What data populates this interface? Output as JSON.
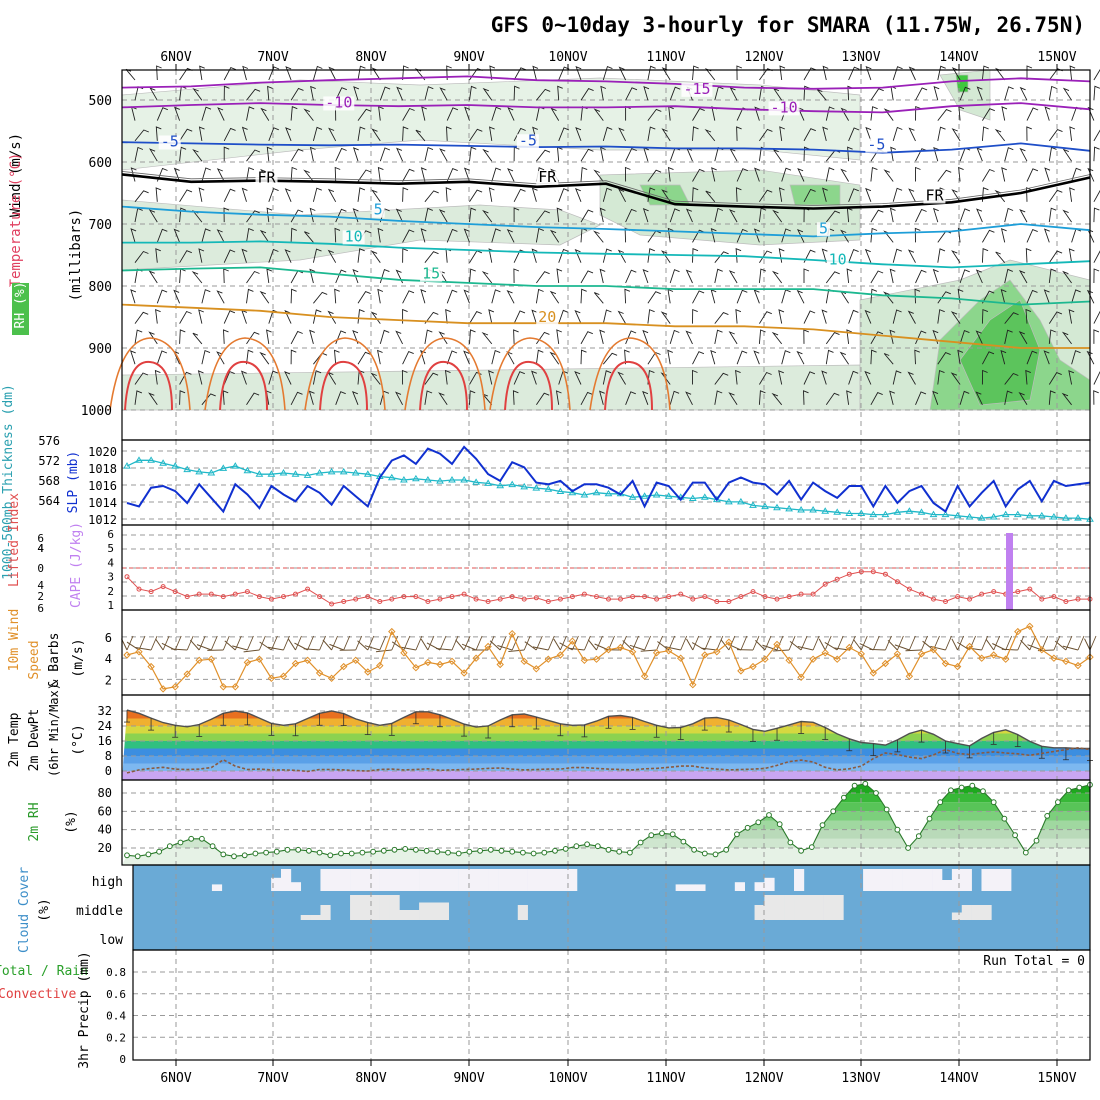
{
  "chart_data": {
    "type": "meteogram",
    "title": "GFS 0~10day 3-hourly for SMARA (11.75W, 26.75N)",
    "dates": [
      "6NOV",
      "7NOV",
      "8NOV",
      "9NOV",
      "10NOV",
      "11NOV",
      "12NOV",
      "13NOV",
      "14NOV",
      "15NOV"
    ],
    "colors": {
      "grid": "#9a9a9a",
      "blue_line": "#1030d0",
      "cyan_line": "#20b8c8",
      "cloud": "#6aaad6",
      "cloud_clear": "#f4f2f8",
      "precip_bar": "#c080f0"
    },
    "upper": {
      "ylabel_main": "(millibars)",
      "ylabel_wind": "Wind (m/s)",
      "ylabel_temp": "Temperature (°C)",
      "ylabel_rh": "RH (%)",
      "ticks": [
        "500",
        "600",
        "700",
        "800",
        "900",
        "1000"
      ],
      "tick_values": [
        500,
        600,
        700,
        800,
        900,
        1000
      ],
      "ylim": [
        450,
        1000
      ],
      "isotherms": [
        {
          "label": "-15",
          "p": [
            480,
            478,
            472,
            468,
            465,
            462,
            468,
            470,
            474,
            480,
            482,
            480,
            470,
            465,
            470
          ]
        },
        {
          "label": "-10",
          "p": [
            512,
            508,
            505,
            508,
            510,
            508,
            512,
            512,
            510,
            515,
            518,
            520,
            510,
            505,
            515
          ]
        },
        {
          "label": "-5",
          "p": [
            568,
            570,
            572,
            573,
            572,
            574,
            576,
            575,
            578,
            578,
            580,
            585,
            580,
            570,
            582
          ]
        },
        {
          "label": "FR",
          "p": [
            620,
            632,
            630,
            632,
            635,
            632,
            640,
            635,
            668,
            672,
            675,
            672,
            665,
            650,
            625
          ]
        },
        {
          "label": "5",
          "p": [
            672,
            680,
            685,
            688,
            695,
            700,
            705,
            708,
            712,
            716,
            720,
            715,
            712,
            700,
            710
          ]
        },
        {
          "label": "10",
          "p": [
            730,
            730,
            728,
            732,
            738,
            742,
            746,
            748,
            750,
            752,
            758,
            765,
            770,
            765,
            760
          ]
        },
        {
          "label": "15",
          "p": [
            775,
            772,
            770,
            780,
            790,
            795,
            800,
            800,
            805,
            805,
            805,
            815,
            820,
            830,
            825
          ]
        },
        {
          "label": "20",
          "p": [
            830,
            835,
            840,
            850,
            855,
            860,
            860,
            860,
            865,
            865,
            870,
            880,
            890,
            900,
            900
          ]
        }
      ],
      "iso_labels": [
        {
          "text": "-15",
          "color": "#9a20b8",
          "x": 0.58,
          "p": 490
        },
        {
          "text": "-10",
          "color": "#9a20b8",
          "x": 0.21,
          "p": 512
        },
        {
          "text": "-10",
          "color": "#9a20b8",
          "x": 0.67,
          "p": 520
        },
        {
          "text": "-5",
          "color": "#1e4ec8",
          "x": 0.04,
          "p": 575
        },
        {
          "text": "-5",
          "color": "#1e4ec8",
          "x": 0.41,
          "p": 573
        },
        {
          "text": "-5",
          "color": "#1e4ec8",
          "x": 0.77,
          "p": 580
        },
        {
          "text": "FR",
          "color": "#000000",
          "x": 0.14,
          "p": 633
        },
        {
          "text": "FR",
          "color": "#000000",
          "x": 0.43,
          "p": 632
        },
        {
          "text": "FR",
          "color": "#000000",
          "x": 0.83,
          "p": 662
        },
        {
          "text": "5",
          "color": "#1e9ed8",
          "x": 0.26,
          "p": 685
        },
        {
          "text": "5",
          "color": "#1e9ed8",
          "x": 0.72,
          "p": 715
        },
        {
          "text": "10",
          "color": "#14b8b8",
          "x": 0.23,
          "p": 728
        },
        {
          "text": "10",
          "color": "#14b8b8",
          "x": 0.73,
          "p": 765
        },
        {
          "text": "15",
          "color": "#1cb890",
          "x": 0.31,
          "p": 788
        },
        {
          "text": "20",
          "color": "#d89020",
          "x": 0.43,
          "p": 858
        }
      ]
    },
    "panel2": {
      "ylabel_left": "1000-500mb Thickness (dm)",
      "ylabel_right": "SLP (mb)",
      "left_ticks": [
        "576",
        "572",
        "568",
        "564"
      ],
      "right_ticks": [
        "1020",
        "1018",
        "1016",
        "1014",
        "1012"
      ],
      "slp": [
        1014.0,
        1013.6,
        1015.8,
        1016.0,
        1015.4,
        1014.0,
        1016.2,
        1014.6,
        1013.0,
        1016.2,
        1015.0,
        1013.4,
        1016.0,
        1015.0,
        1014.2,
        1016.0,
        1015.2,
        1013.8,
        1016.0,
        1014.8,
        1013.6,
        1017.0,
        1019.0,
        1019.6,
        1018.6,
        1020.4,
        1019.8,
        1018.6,
        1020.6,
        1019.2,
        1017.4,
        1016.6,
        1018.8,
        1018.2,
        1016.4,
        1016.2,
        1016.6,
        1015.4,
        1016.2,
        1016.2,
        1015.8,
        1015.0,
        1016.6,
        1013.6,
        1016.4,
        1016.0,
        1014.4,
        1016.4,
        1016.4,
        1014.4,
        1016.4,
        1017.0,
        1016.4,
        1016.2,
        1015.0,
        1016.6,
        1014.4,
        1016.4,
        1015.4,
        1014.6,
        1016.0,
        1016.0,
        1013.6,
        1016.0,
        1014.0,
        1015.4,
        1016.0,
        1014.0,
        1013.0,
        1016.0,
        1013.6,
        1015.2,
        1016.6,
        1013.6,
        1015.6,
        1016.6,
        1014.2,
        1016.6,
        1016.0,
        1016.2,
        1016.4
      ],
      "thickness": [
        572.0,
        573.0,
        573.0,
        572.5,
        572.0,
        571.4,
        571.0,
        570.8,
        571.6,
        572.0,
        571.2,
        570.6,
        570.6,
        570.8,
        570.6,
        570.4,
        570.8,
        571.0,
        571.0,
        570.8,
        570.6,
        570.2,
        570.0,
        569.6,
        569.8,
        569.6,
        569.4,
        569.6,
        569.6,
        569.2,
        569.0,
        568.6,
        568.8,
        568.4,
        568.2,
        568.0,
        567.6,
        567.4,
        567.0,
        567.4,
        567.2,
        567.2,
        566.6,
        566.8,
        567.0,
        566.8,
        566.6,
        566.4,
        566.6,
        566.2,
        565.8,
        565.8,
        565.2,
        565.0,
        564.8,
        564.6,
        564.4,
        564.4,
        564.2,
        564.0,
        563.8,
        563.8,
        563.6,
        563.6,
        564.0,
        564.2,
        564.0,
        563.6,
        563.6,
        563.4,
        563.2,
        563.0,
        563.2,
        563.6,
        563.6,
        563.4,
        563.4,
        563.2,
        563.0,
        563.0,
        562.8
      ]
    },
    "panel3": {
      "ylabel_li": "Lifted Index",
      "ylabel_cape": "CAPE (J/kg)",
      "ticks": [
        "6",
        "4",
        "2",
        "0",
        "2",
        "4",
        "6"
      ],
      "li_positive": [
        2.6,
        1.6,
        1.4,
        1.8,
        1.4,
        1.0,
        1.2,
        1.2,
        1.0,
        1.2,
        1.4,
        1.0,
        0.8,
        1.0,
        1.2,
        1.6,
        1.0,
        0.4,
        0.6,
        0.8,
        1.0,
        0.6,
        0.8,
        1.0,
        1.0,
        0.6,
        0.8,
        1.0,
        1.2,
        0.8,
        0.6,
        0.8,
        1.0,
        0.8,
        0.9,
        0.6,
        0.8,
        1.0,
        1.2,
        1.0,
        0.8,
        0.8,
        1.0,
        1.0,
        0.8,
        1.0,
        1.2,
        0.8,
        1.0,
        0.6,
        0.6,
        1.0,
        1.4,
        1.0,
        0.8,
        1.0,
        1.2,
        1.2,
        2.0,
        2.4,
        2.8,
        3.0,
        3.0,
        2.8,
        2.2,
        1.6,
        1.2,
        0.8,
        0.6,
        1.0,
        0.8,
        1.2,
        1.4,
        1.2,
        1.4,
        1.6,
        0.8,
        1.0,
        0.6,
        0.8,
        0.8
      ],
      "cape_bar": {
        "date_index": 8.5,
        "value": 6
      }
    },
    "panel4": {
      "ylabel_wind": "10m Wind",
      "ylabel_speed": "Speed",
      "ylabel_barbs": "& Barbs",
      "unit": "(m/s)",
      "ticks": [
        "6",
        "4",
        "2"
      ],
      "speed": [
        4.3,
        4.6,
        3.2,
        1.1,
        1.3,
        2.5,
        3.8,
        3.9,
        1.3,
        1.3,
        3.6,
        3.9,
        2.1,
        2.3,
        3.5,
        3.8,
        2.6,
        2.1,
        3.2,
        3.8,
        2.7,
        3.3,
        6.5,
        4.5,
        3.1,
        3.6,
        3.4,
        3.7,
        2.6,
        4.0,
        5.1,
        3.4,
        6.3,
        3.7,
        3.0,
        3.9,
        4.3,
        5.6,
        3.8,
        3.9,
        4.8,
        5.0,
        4.6,
        2.3,
        4.5,
        4.7,
        4.0,
        1.5,
        4.3,
        4.6,
        5.5,
        2.8,
        3.2,
        3.9,
        5.3,
        3.8,
        2.2,
        3.9,
        4.5,
        3.9,
        5.0,
        4.4,
        2.6,
        3.5,
        4.4,
        2.3,
        4.4,
        4.8,
        3.5,
        3.2,
        5.1,
        4.0,
        4.3,
        3.9,
        6.5,
        7.0,
        4.8,
        4.0,
        3.7,
        3.3,
        4.1
      ]
    },
    "panel5": {
      "ylabel_temp": "2m Temp",
      "ylabel_dew": "2m DewPt",
      "ylabel_minmax": "(6hr Min/Max)",
      "unit": "(°C)",
      "ticks": [
        "32",
        "24",
        "16",
        "8",
        "0"
      ],
      "temp": [
        32.5,
        30.8,
        28.2,
        25.8,
        24.4,
        23.6,
        24.8,
        27.6,
        30.8,
        32.0,
        31.0,
        28.2,
        25.4,
        24.4,
        25.2,
        28.0,
        30.8,
        32.0,
        30.6,
        27.8,
        25.8,
        24.4,
        25.4,
        28.6,
        31.6,
        31.6,
        30.0,
        27.6,
        25.0,
        23.4,
        24.0,
        27.2,
        30.0,
        30.4,
        28.8,
        27.0,
        25.2,
        24.4,
        24.6,
        26.6,
        29.2,
        29.6,
        28.6,
        26.4,
        24.4,
        23.0,
        23.2,
        25.2,
        28.2,
        28.6,
        27.2,
        24.8,
        22.2,
        21.2,
        22.8,
        24.6,
        26.4,
        26.0,
        23.2,
        19.8,
        17.2,
        15.2,
        14.6,
        13.8,
        16.6,
        20.0,
        21.8,
        19.6,
        16.0,
        14.6,
        13.4,
        17.4,
        20.6,
        22.0,
        19.4,
        15.8,
        13.2,
        12.4,
        12.4,
        12.0,
        12.0
      ],
      "dew": [
        -1.0,
        0.6,
        1.4,
        2.0,
        1.0,
        0.8,
        1.0,
        1.8,
        6.0,
        2.6,
        0.8,
        1.0,
        0.6,
        0.6,
        0.4,
        -0.2,
        0.8,
        0.8,
        0.6,
        0.2,
        0.0,
        0.8,
        1.0,
        0.6,
        0.8,
        1.2,
        0.4,
        0.6,
        0.8,
        1.0,
        1.4,
        1.6,
        1.0,
        0.6,
        0.8,
        1.0,
        1.0,
        1.8,
        1.8,
        1.4,
        1.0,
        0.8,
        0.6,
        1.2,
        1.4,
        2.0,
        2.6,
        2.6,
        1.6,
        1.0,
        0.6,
        0.8,
        1.0,
        1.4,
        3.0,
        5.0,
        5.8,
        4.8,
        2.0,
        0.6,
        1.2,
        2.6,
        6.6,
        9.6,
        8.8,
        7.4,
        6.6,
        8.6,
        11.4,
        9.4,
        8.8,
        9.6,
        10.2,
        9.6,
        9.2,
        8.4,
        9.4,
        10.4,
        11.4,
        12.4,
        11.4
      ]
    },
    "panel6": {
      "ylabel": "2m RH",
      "unit": "(%)",
      "ticks": [
        "80",
        "60",
        "40",
        "20"
      ],
      "rh": [
        12,
        11,
        13,
        16,
        22,
        26,
        30,
        30,
        22,
        13,
        11,
        12,
        14,
        15,
        16,
        18,
        18,
        17,
        15,
        12,
        14,
        14,
        15,
        16,
        17,
        18,
        19,
        18,
        17,
        16,
        15,
        14,
        16,
        17,
        18,
        17,
        16,
        15,
        14,
        15,
        17,
        19,
        22,
        24,
        22,
        18,
        16,
        15,
        26,
        34,
        36,
        35,
        27,
        18,
        14,
        13,
        18,
        35,
        42,
        48,
        56,
        46,
        26,
        17,
        21,
        45,
        60,
        75,
        88,
        90,
        80,
        62,
        40,
        20,
        33,
        52,
        70,
        83,
        86,
        88,
        82,
        70,
        52,
        34,
        15,
        28,
        55,
        70,
        83,
        86,
        89
      ]
    },
    "panel7": {
      "ylabel_cloud": "Cloud Cover",
      "unit": "(%)",
      "levels": [
        "high",
        "middle",
        "low"
      ],
      "high": [
        0,
        0,
        0,
        0,
        0,
        0,
        0,
        0,
        0.3,
        0,
        0,
        0,
        0,
        0,
        0.6,
        1,
        0.4,
        0,
        0,
        1,
        1,
        1,
        1,
        1,
        1,
        1,
        1,
        1,
        1,
        1,
        1,
        1,
        1,
        1,
        1,
        1,
        1,
        1,
        1,
        1,
        1,
        1,
        1,
        1,
        1,
        0,
        0,
        0,
        0,
        0,
        0,
        0,
        0,
        0,
        0,
        0.3,
        0.3,
        0.3,
        0,
        0,
        0,
        0.4,
        0,
        0.4,
        0.6,
        0,
        0,
        1,
        0,
        0,
        0,
        0,
        0,
        0,
        1,
        1,
        1,
        1,
        1,
        1,
        1,
        1,
        0.5,
        1,
        1,
        0,
        1,
        1,
        1,
        0,
        0,
        0,
        0,
        0,
        0,
        0,
        0
      ],
      "middle": [
        0,
        0,
        0,
        0,
        0,
        0,
        0,
        0,
        0,
        0,
        0,
        0,
        0,
        0,
        0,
        0,
        0,
        0.2,
        0.2,
        0.6,
        0,
        0,
        1,
        1,
        1,
        1,
        1,
        0.4,
        0.4,
        0.7,
        0.7,
        0.7,
        0,
        0,
        0,
        0,
        0,
        0,
        0,
        0.6,
        0,
        0,
        0,
        0,
        0,
        0,
        0,
        0,
        0,
        0,
        0,
        0,
        0,
        0,
        0,
        0,
        0,
        0,
        0,
        0,
        0,
        0,
        0,
        0.6,
        1,
        1,
        1,
        1,
        1,
        1,
        1,
        1,
        0,
        0,
        0,
        0,
        0,
        0,
        0,
        0,
        0,
        0,
        0,
        0.3,
        0.6,
        0.6,
        0.6,
        0,
        0,
        0,
        0,
        0,
        0,
        0,
        0,
        0
      ]
    },
    "panel8": {
      "ylabel_a": "Total / Rain",
      "ylabel_b": "Convective",
      "ylabel_c": "3hr Precip (mm)",
      "ticks": [
        "0.8",
        "0.6",
        "0.4",
        "0.2",
        "0"
      ],
      "run_total": "Run Total = 0"
    }
  }
}
